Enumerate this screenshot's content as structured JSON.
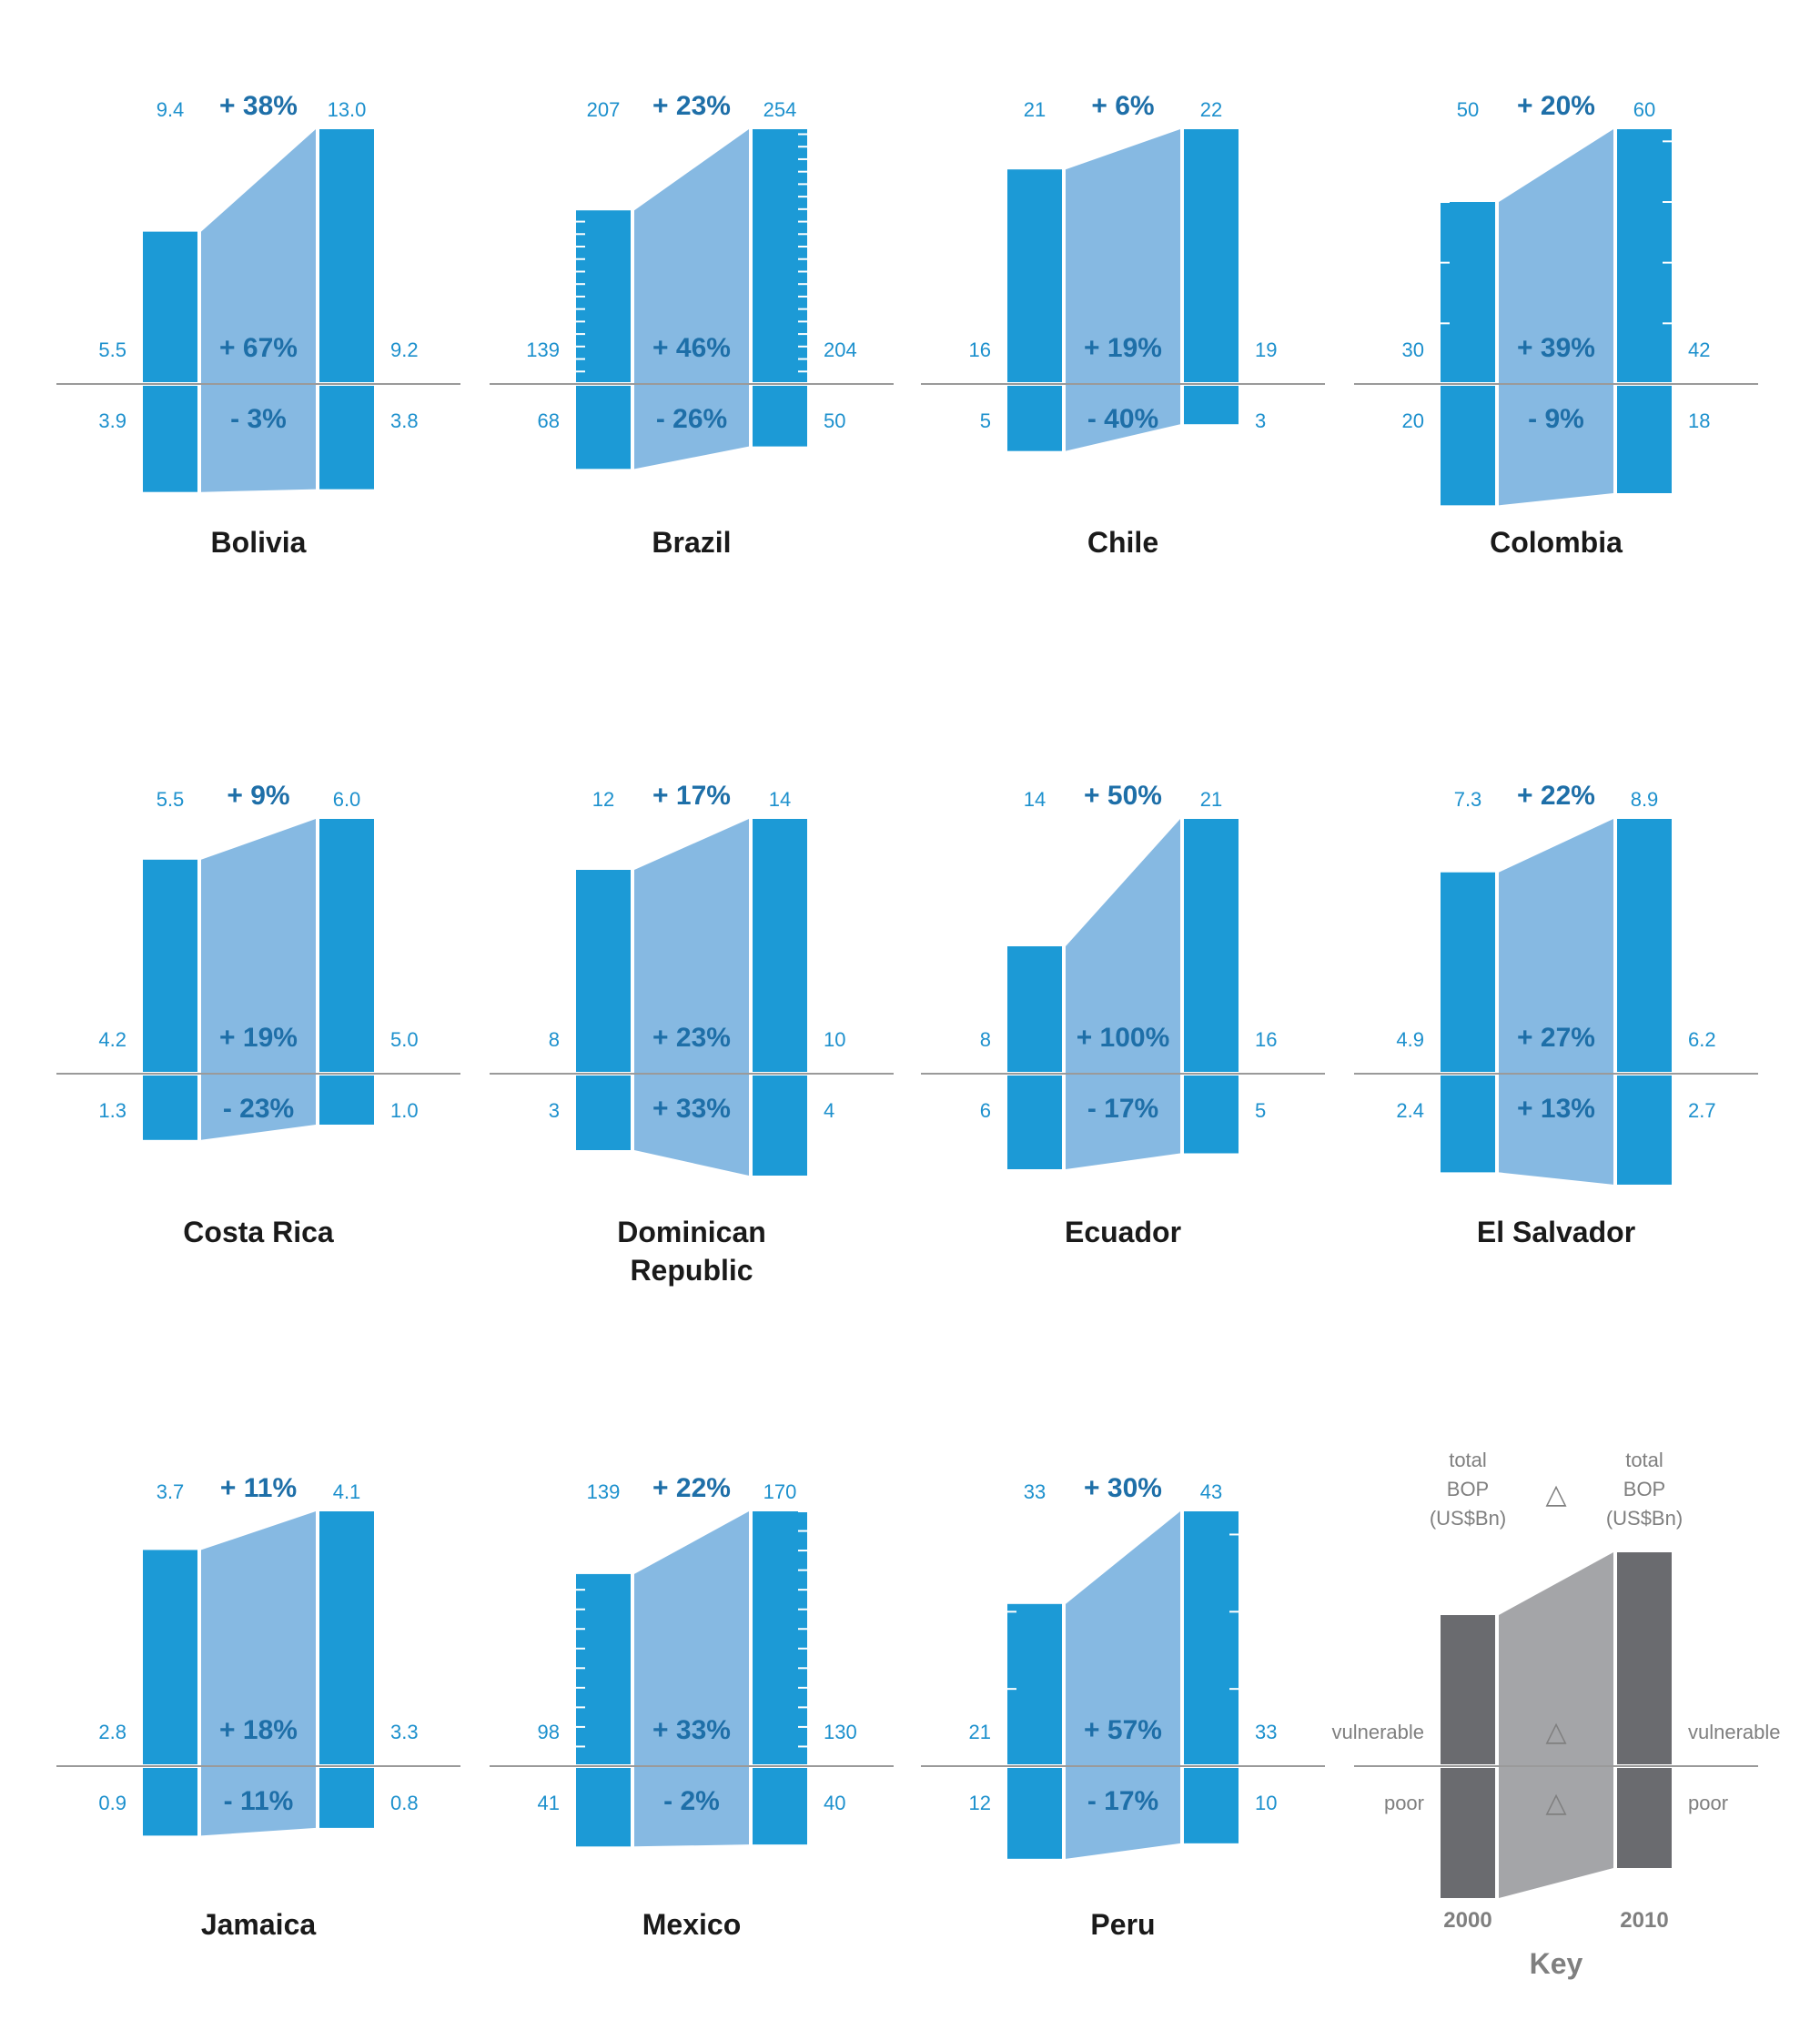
{
  "chart_data": {
    "type": "bar",
    "units": "US$Bn",
    "years": [
      "2000",
      "2010"
    ],
    "colors": {
      "bar": "#1c9ad6",
      "band": "#86b9e2",
      "value_text": "#1c90cd",
      "pct_text": "#1e6fa8",
      "axis": "#9a9a9a",
      "name_text": "#1a1a1a",
      "key_bar": "#6a6b6f",
      "key_band": "#a4a5a8",
      "key_text": "#7f7f7f"
    },
    "countries": [
      {
        "name": "Bolivia",
        "total_2000": "9.4",
        "total_2010": "13.0",
        "total_change": "+ 38%",
        "vulnerable_2000": "5.5",
        "vulnerable_2010": "9.2",
        "vulnerable_change": "+ 67%",
        "poor_2000": "3.9",
        "poor_2010": "3.8",
        "poor_change": "- 3%"
      },
      {
        "name": "Brazil",
        "total_2000": "207",
        "total_2010": "254",
        "total_change": "+ 23%",
        "vulnerable_2000": "139",
        "vulnerable_2010": "204",
        "vulnerable_change": "+ 46%",
        "poor_2000": "68",
        "poor_2010": "50",
        "poor_change": "- 26%"
      },
      {
        "name": "Chile",
        "total_2000": "21",
        "total_2010": "22",
        "total_change": "+ 6%",
        "vulnerable_2000": "16",
        "vulnerable_2010": "19",
        "vulnerable_change": "+ 19%",
        "poor_2000": "5",
        "poor_2010": "3",
        "poor_change": "- 40%"
      },
      {
        "name": "Colombia",
        "total_2000": "50",
        "total_2010": "60",
        "total_change": "+ 20%",
        "vulnerable_2000": "30",
        "vulnerable_2010": "42",
        "vulnerable_change": "+ 39%",
        "poor_2000": "20",
        "poor_2010": "18",
        "poor_change": "- 9%"
      },
      {
        "name": "Costa Rica",
        "total_2000": "5.5",
        "total_2010": "6.0",
        "total_change": "+ 9%",
        "vulnerable_2000": "4.2",
        "vulnerable_2010": "5.0",
        "vulnerable_change": "+ 19%",
        "poor_2000": "1.3",
        "poor_2010": "1.0",
        "poor_change": "- 23%"
      },
      {
        "name": "Dominican\nRepublic",
        "total_2000": "12",
        "total_2010": "14",
        "total_change": "+ 17%",
        "vulnerable_2000": "8",
        "vulnerable_2010": "10",
        "vulnerable_change": "+ 23%",
        "poor_2000": "3",
        "poor_2010": "4",
        "poor_change": "+ 33%"
      },
      {
        "name": "Ecuador",
        "total_2000": "14",
        "total_2010": "21",
        "total_change": "+ 50%",
        "vulnerable_2000": "8",
        "vulnerable_2010": "16",
        "vulnerable_change": "+ 100%",
        "poor_2000": "6",
        "poor_2010": "5",
        "poor_change": "- 17%"
      },
      {
        "name": "El Salvador",
        "total_2000": "7.3",
        "total_2010": "8.9",
        "total_change": "+ 22%",
        "vulnerable_2000": "4.9",
        "vulnerable_2010": "6.2",
        "vulnerable_change": "+ 27%",
        "poor_2000": "2.4",
        "poor_2010": "2.7",
        "poor_change": "+ 13%"
      },
      {
        "name": "Jamaica",
        "total_2000": "3.7",
        "total_2010": "4.1",
        "total_change": "+ 11%",
        "vulnerable_2000": "2.8",
        "vulnerable_2010": "3.3",
        "vulnerable_change": "+ 18%",
        "poor_2000": "0.9",
        "poor_2010": "0.8",
        "poor_change": "- 11%"
      },
      {
        "name": "Mexico",
        "total_2000": "139",
        "total_2010": "170",
        "total_change": "+ 22%",
        "vulnerable_2000": "98",
        "vulnerable_2010": "130",
        "vulnerable_change": "+ 33%",
        "poor_2000": "41",
        "poor_2010": "40",
        "poor_change": "- 2%"
      },
      {
        "name": "Peru",
        "total_2000": "33",
        "total_2010": "43",
        "total_change": "+ 30%",
        "vulnerable_2000": "21",
        "vulnerable_2010": "33",
        "vulnerable_change": "+ 57%",
        "poor_2000": "12",
        "poor_2010": "10",
        "poor_change": "- 17%"
      }
    ],
    "key": {
      "title": "Key",
      "total_label_lines": [
        "total",
        "BOP",
        "(US$Bn)"
      ],
      "delta_symbol": "△",
      "vulnerable_label": "vulnerable",
      "poor_label": "poor",
      "year_left": "2000",
      "year_right": "2010"
    }
  }
}
